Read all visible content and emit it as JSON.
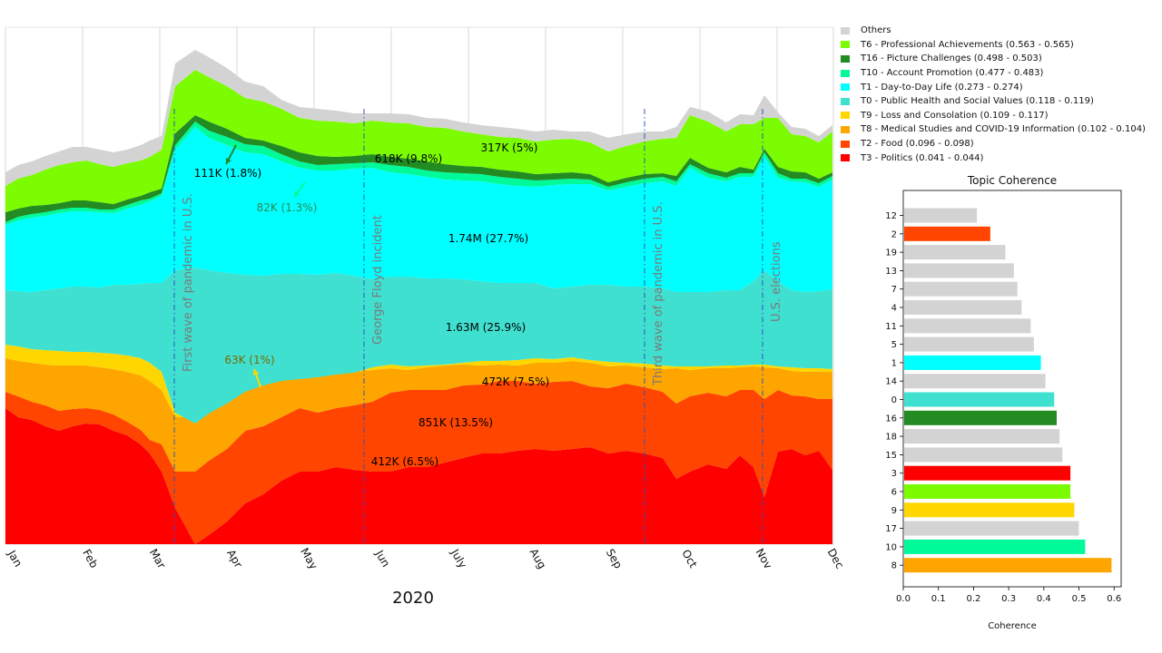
{
  "chart_data": [
    {
      "type": "area",
      "stacked": true,
      "xlabel": "2020",
      "months": [
        "Jan",
        "Feb",
        "Mar",
        "Apr",
        "May",
        "Jun",
        "July",
        "Aug",
        "Sep",
        "Oct",
        "Nov",
        "Dec"
      ],
      "grid": "vertical",
      "events": [
        "First wave of pandemic in U.S.",
        "George Floyd incident",
        "Third wave of pandemic in U.S.",
        "U.S. elections"
      ],
      "legend_position": "right",
      "layers": [
        {
          "name": "T3 - Politics (0.041 - 0.044)",
          "color": "#ff0000"
        },
        {
          "name": "T2 - Food (0.096 - 0.098)",
          "color": "#ff4500"
        },
        {
          "name": "T8 - Medical Studies and COVID-19 Information (0.102 - 0.104)",
          "color": "#ffa500"
        },
        {
          "name": "T9 - Loss and Consolation (0.109 - 0.117)",
          "color": "#ffd700"
        },
        {
          "name": "T0 - Public Health and Social Values (0.118 - 0.119)",
          "color": "#40e0d0"
        },
        {
          "name": "T1 - Day-to-Day Life (0.273 - 0.274)",
          "color": "#00ffff"
        },
        {
          "name": "T10 - Account Promotion (0.477 - 0.483)",
          "color": "#00fa9a"
        },
        {
          "name": "T16 - Picture Challenges (0.498 - 0.503)",
          "color": "#228b22"
        },
        {
          "name": "T6 - Professional Achievements (0.563 - 0.565)",
          "color": "#7cfc00"
        },
        {
          "name": "Others",
          "color": "#d3d3d3"
        }
      ],
      "legend_order": [
        "Others",
        "T6 - Professional Achievements (0.563 - 0.565)",
        "T16 - Picture Challenges (0.498 - 0.503)",
        "T10 - Account Promotion (0.477 - 0.483)",
        "T1 - Day-to-Day Life (0.273 - 0.274)",
        "T0 - Public Health and Social Values (0.118 - 0.119)",
        "T9 - Loss and Consolation (0.109 - 0.117)",
        "T8 - Medical Studies and COVID-19 Information (0.102 - 0.104)",
        "T2 - Food (0.096 - 0.098)",
        "T3 - Politics (0.041 - 0.044)"
      ],
      "annotations": [
        {
          "text": "317K (5%)",
          "topic": "Others"
        },
        {
          "text": "618K (9.8%)",
          "topic": "T6"
        },
        {
          "text": "111K (1.8%)",
          "topic": "T16"
        },
        {
          "text": "82K (1.3%)",
          "topic": "T10"
        },
        {
          "text": "1.74M  (27.7%)",
          "topic": "T1"
        },
        {
          "text": "1.63M  (25.9%)",
          "topic": "T0"
        },
        {
          "text": "63K (1%)",
          "topic": "T9"
        },
        {
          "text": "472K (7.5%)",
          "topic": "T8"
        },
        {
          "text": "851K (13.5%)",
          "topic": "T2"
        },
        {
          "text": "412K (6.5%)",
          "topic": "T3"
        }
      ]
    },
    {
      "type": "bar",
      "orientation": "horizontal",
      "title": "Topic Coherence",
      "xlabel": "Coherence",
      "xlim": [
        0.0,
        0.62
      ],
      "xticks": [
        "0.0",
        "0.1",
        "0.2",
        "0.3",
        "0.4",
        "0.5",
        "0.6"
      ],
      "categories": [
        "12",
        "2",
        "19",
        "13",
        "7",
        "4",
        "11",
        "5",
        "1",
        "14",
        "0",
        "16",
        "18",
        "15",
        "3",
        "6",
        "9",
        "17",
        "10",
        "8"
      ],
      "values": [
        0.207,
        0.245,
        0.288,
        0.312,
        0.322,
        0.334,
        0.36,
        0.369,
        0.389,
        0.402,
        0.427,
        0.434,
        0.442,
        0.45,
        0.473,
        0.473,
        0.484,
        0.497,
        0.515,
        0.59
      ],
      "colors": [
        "#d3d3d3",
        "#ff4500",
        "#d3d3d3",
        "#d3d3d3",
        "#d3d3d3",
        "#d3d3d3",
        "#d3d3d3",
        "#d3d3d3",
        "#00ffff",
        "#d3d3d3",
        "#40e0d0",
        "#228b22",
        "#d3d3d3",
        "#d3d3d3",
        "#ff0000",
        "#7cfc00",
        "#ffd700",
        "#d3d3d3",
        "#00fa9a",
        "#ffa500"
      ]
    }
  ]
}
